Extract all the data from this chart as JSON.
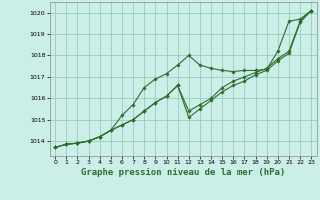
{
  "title": "Graphe pression niveau de la mer (hPa)",
  "title_fontsize": 6.5,
  "background_color": "#cceee8",
  "grid_color": "#99ccbb",
  "line_color": "#2d6e2d",
  "marker_color": "#2d6e2d",
  "ylim": [
    1013.3,
    1020.5
  ],
  "xlim": [
    -0.5,
    23.5
  ],
  "yticks": [
    1014,
    1015,
    1016,
    1017,
    1018,
    1019,
    1020
  ],
  "xticks": [
    0,
    1,
    2,
    3,
    4,
    5,
    6,
    7,
    8,
    9,
    10,
    11,
    12,
    13,
    14,
    15,
    16,
    17,
    18,
    19,
    20,
    21,
    22,
    23
  ],
  "series": [
    [
      1013.7,
      1013.85,
      1013.9,
      1014.0,
      1014.2,
      1014.5,
      1015.2,
      1015.7,
      1016.5,
      1016.9,
      1017.15,
      1017.55,
      1018.0,
      1017.55,
      1017.4,
      1017.3,
      1017.25,
      1017.3,
      1017.3,
      1017.35,
      1018.2,
      1019.6,
      1019.7,
      1020.1
    ],
    [
      1013.7,
      1013.85,
      1013.9,
      1014.0,
      1014.2,
      1014.5,
      1014.75,
      1015.0,
      1015.4,
      1015.8,
      1016.1,
      1016.6,
      1015.4,
      1015.7,
      1016.0,
      1016.5,
      1016.8,
      1017.0,
      1017.2,
      1017.4,
      1017.85,
      1018.2,
      1019.6,
      1020.1
    ],
    [
      1013.7,
      1013.85,
      1013.9,
      1014.0,
      1014.2,
      1014.5,
      1014.75,
      1015.0,
      1015.4,
      1015.8,
      1016.1,
      1016.6,
      1015.1,
      1015.5,
      1015.9,
      1016.3,
      1016.6,
      1016.8,
      1017.1,
      1017.3,
      1017.75,
      1018.1,
      1019.55,
      1020.1
    ]
  ]
}
